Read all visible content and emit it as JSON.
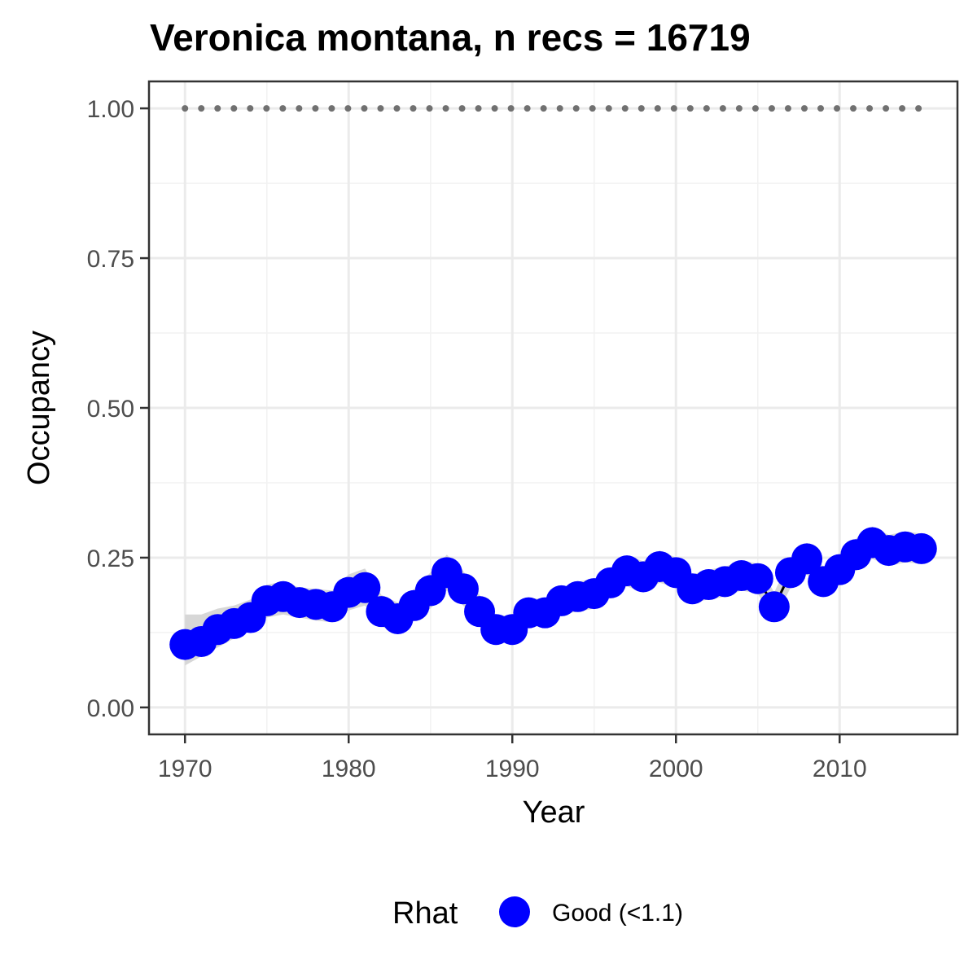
{
  "chart_data": {
    "type": "line",
    "title": "Veronica montana, n recs = 16719",
    "xlabel": "Year",
    "ylabel": "Occupancy",
    "xlim": [
      1967.8,
      2017.2
    ],
    "ylim": [
      -0.045,
      1.045
    ],
    "x_ticks": [
      1970,
      1980,
      1990,
      2000,
      2010
    ],
    "x_tick_labels": [
      "1970",
      "1980",
      "1990",
      "2000",
      "2010"
    ],
    "y_ticks": [
      0,
      0.25,
      0.5,
      0.75,
      1.0
    ],
    "y_tick_labels": [
      "0.00",
      "0.25",
      "0.50",
      "0.75",
      "1.00"
    ],
    "grid": true,
    "legend": {
      "title": "Rhat",
      "position": "bottom",
      "entries": [
        {
          "label": "Good (<1.1)",
          "color": "#0000ff"
        }
      ]
    },
    "colors": {
      "points": "#0000ff",
      "ribbon": "#d3d3d3",
      "reference": "#707070"
    },
    "series": [
      {
        "x": [
          1970,
          1971,
          1972,
          1973,
          1974,
          1975,
          1976,
          1977,
          1978,
          1979,
          1980,
          1981,
          1982,
          1983,
          1984,
          1985,
          1986,
          1987,
          1988,
          1989,
          1990,
          1991,
          1992,
          1993,
          1994,
          1995,
          1996,
          1997,
          1998,
          1999,
          2000,
          2001,
          2002,
          2003,
          2004,
          2005,
          2006,
          2007,
          2008,
          2009,
          2010,
          2011,
          2012,
          2013,
          2014,
          2015
        ],
        "y": [
          0.105,
          0.11,
          0.13,
          0.14,
          0.15,
          0.178,
          0.185,
          0.175,
          0.172,
          0.168,
          0.192,
          0.2,
          0.16,
          0.148,
          0.17,
          0.195,
          0.225,
          0.198,
          0.16,
          0.13,
          0.13,
          0.158,
          0.158,
          0.178,
          0.185,
          0.19,
          0.208,
          0.228,
          0.218,
          0.235,
          0.225,
          0.198,
          0.205,
          0.21,
          0.22,
          0.215,
          0.168,
          0.225,
          0.248,
          0.21,
          0.23,
          0.255,
          0.275,
          0.262,
          0.268,
          0.265
        ],
        "lower": [
          0.07,
          0.085,
          0.1,
          0.115,
          0.13,
          0.15,
          0.155,
          0.15,
          0.145,
          0.142,
          0.162,
          0.17,
          0.135,
          0.125,
          0.145,
          0.165,
          0.195,
          0.17,
          0.135,
          0.11,
          0.11,
          0.135,
          0.135,
          0.155,
          0.16,
          0.165,
          0.183,
          0.202,
          0.192,
          0.208,
          0.2,
          0.175,
          0.18,
          0.185,
          0.195,
          0.19,
          0.145,
          0.2,
          0.222,
          0.185,
          0.205,
          0.228,
          0.248,
          0.236,
          0.242,
          0.24
        ],
        "upper": [
          0.155,
          0.155,
          0.165,
          0.17,
          0.18,
          0.205,
          0.21,
          0.2,
          0.198,
          0.195,
          0.222,
          0.232,
          0.188,
          0.175,
          0.198,
          0.225,
          0.255,
          0.228,
          0.188,
          0.155,
          0.152,
          0.182,
          0.182,
          0.2,
          0.21,
          0.215,
          0.233,
          0.254,
          0.244,
          0.262,
          0.25,
          0.222,
          0.23,
          0.235,
          0.245,
          0.24,
          0.192,
          0.25,
          0.275,
          0.235,
          0.255,
          0.282,
          0.302,
          0.288,
          0.294,
          0.29
        ]
      }
    ],
    "reference_line": {
      "y": 1.0,
      "x_start": 1970,
      "x_end": 2015
    }
  }
}
